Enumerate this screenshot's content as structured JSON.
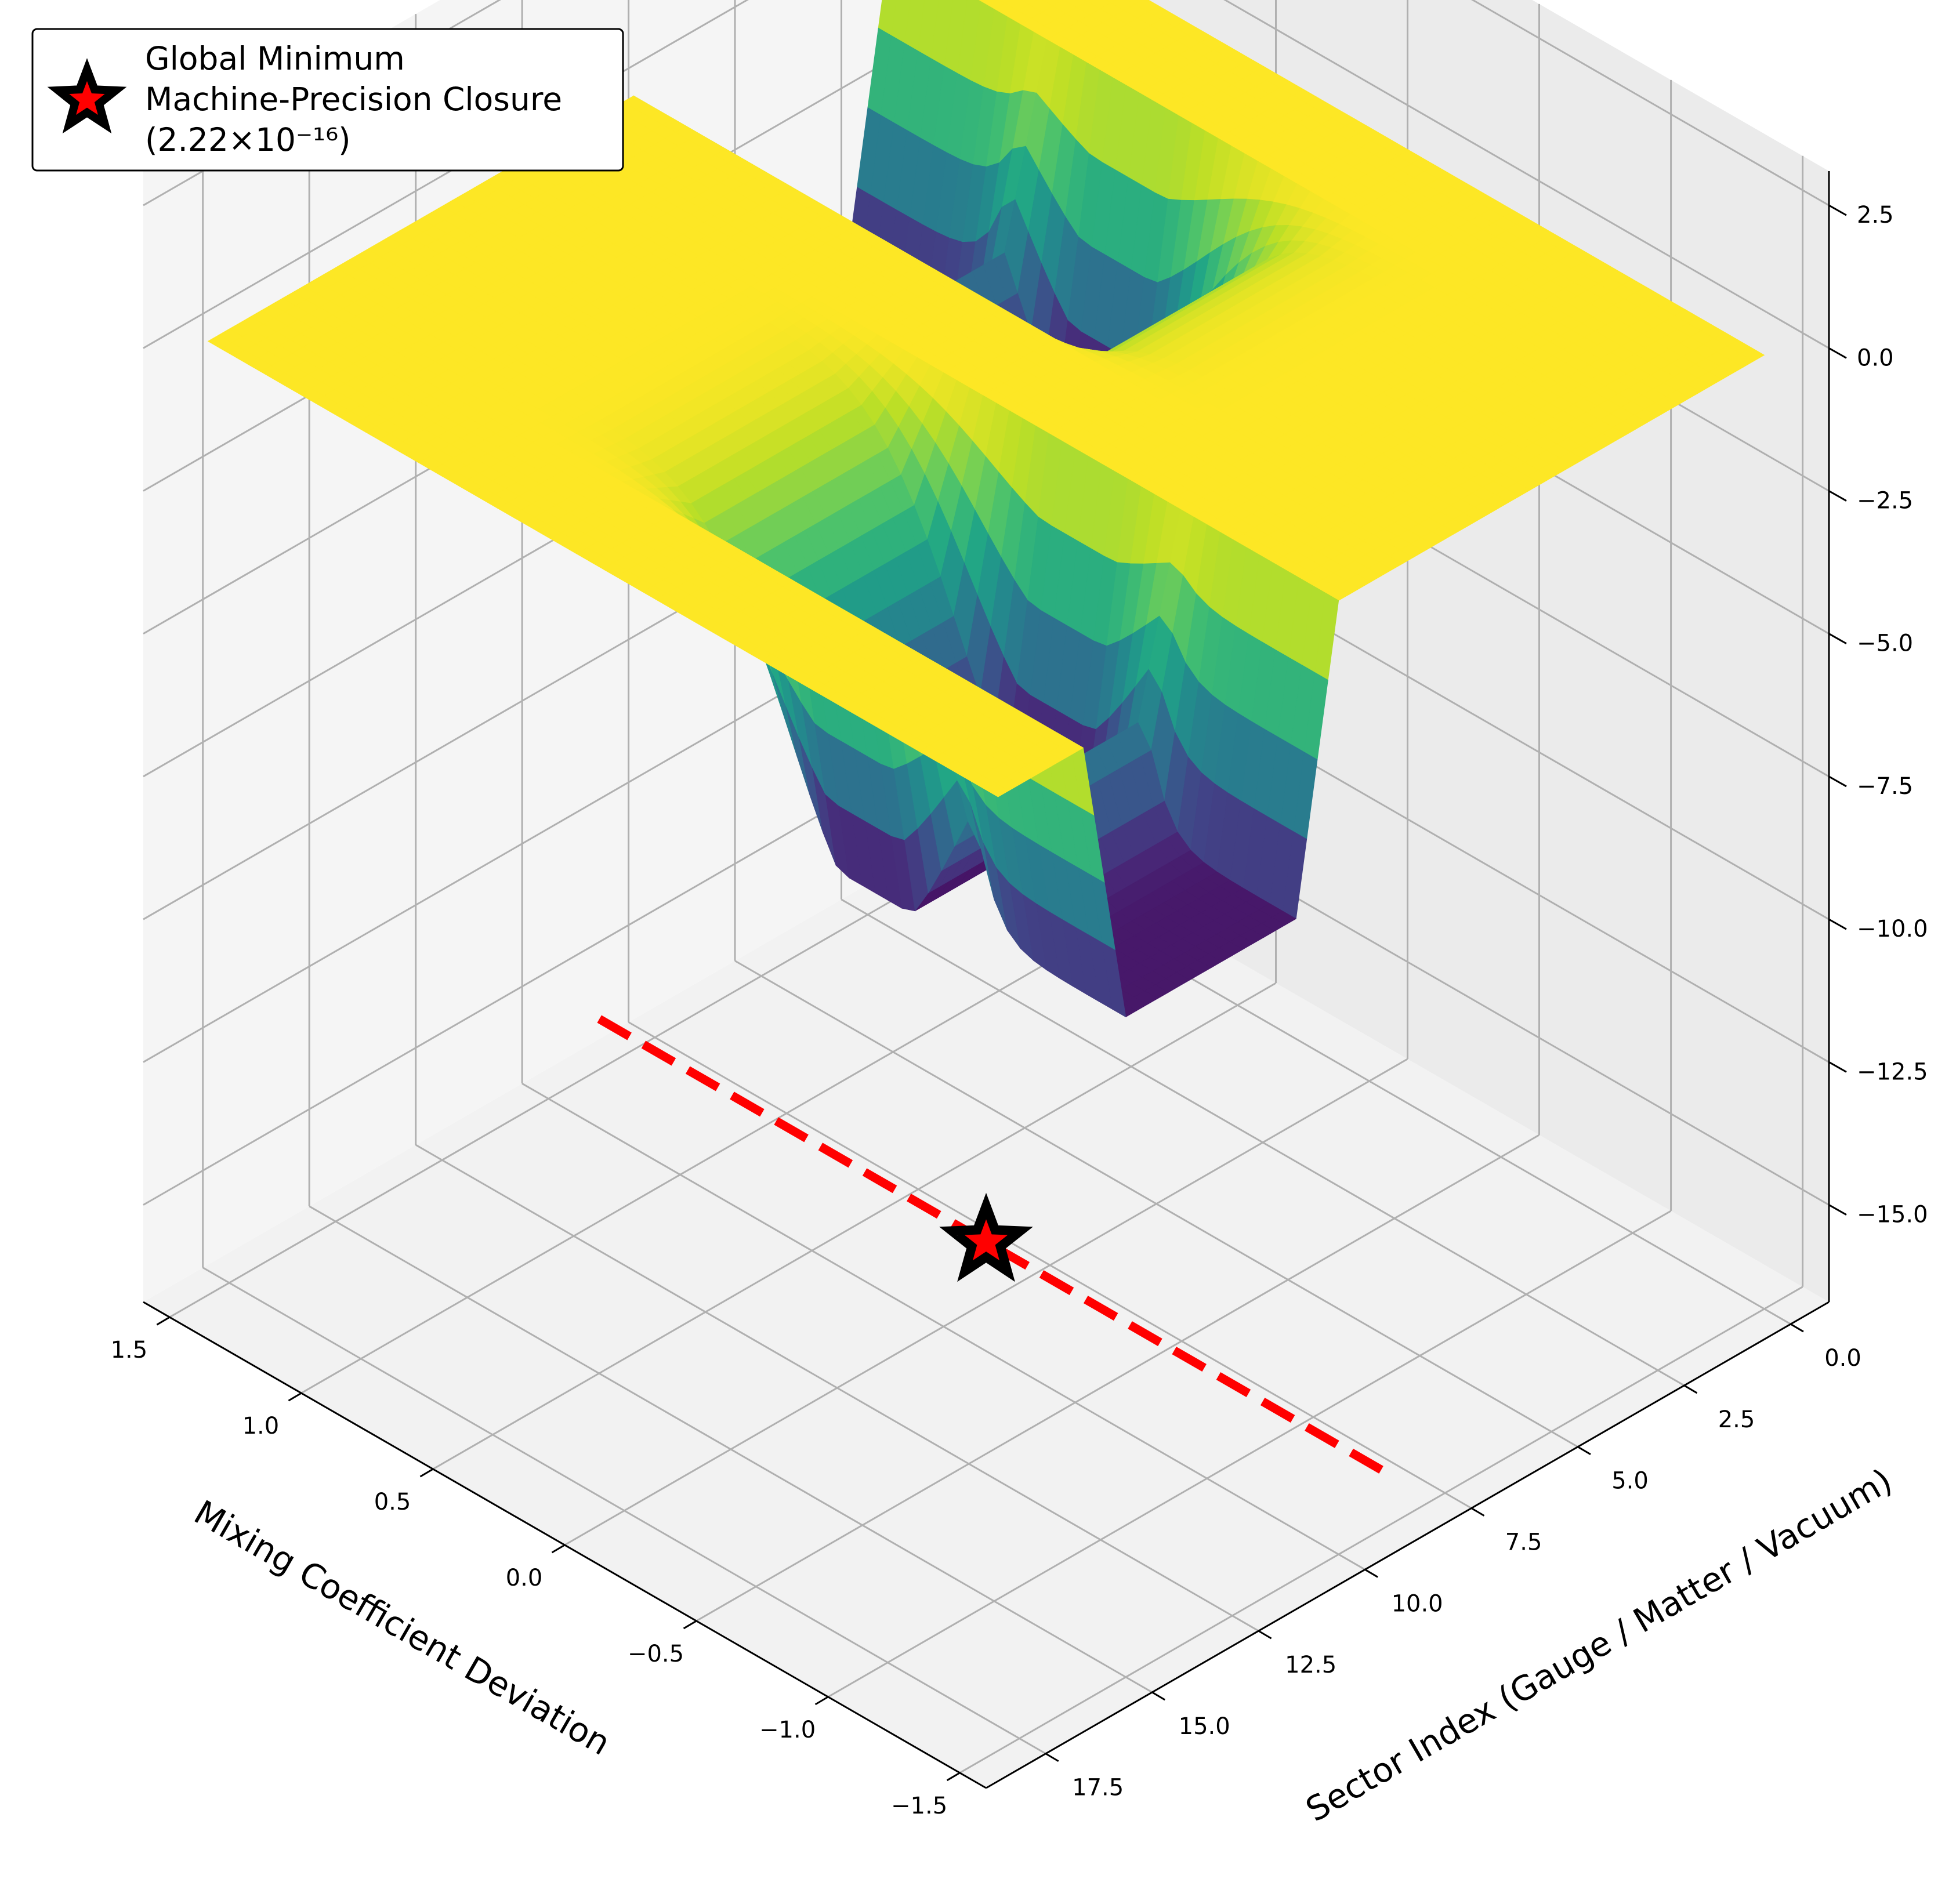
{
  "chart_data": {
    "type": "surface3d",
    "colormap": "viridis",
    "x_axis": {
      "label": "Mixing Coefficient Deviation",
      "ticks": [
        1.5,
        1.0,
        0.5,
        0.0,
        -0.5,
        -1.0,
        -1.5
      ],
      "tick_labels": [
        "1.5",
        "1.0",
        "0.5",
        "0.0",
        "−0.5",
        "−1.0",
        "−1.5"
      ],
      "range": [
        -1.6,
        1.6
      ]
    },
    "y_axis": {
      "label": "Sector Index (Gauge / Matter / Vacuum)",
      "ticks": [
        0,
        2.5,
        5,
        7.5,
        10,
        12.5,
        15,
        17.5
      ],
      "tick_labels": [
        "0.0",
        "2.5",
        "5.0",
        "7.5",
        "10.0",
        "12.5",
        "15.0",
        "17.5"
      ],
      "range": [
        -0.9,
        18.9
      ]
    },
    "z_axis": {
      "label": "",
      "ticks": [
        2.5,
        0.0,
        -2.5,
        -5.0,
        -7.5,
        -10.0,
        -12.5,
        -15.0
      ],
      "tick_labels": [
        "2.5",
        "0.0",
        "−2.5",
        "−5.0",
        "−7.5",
        "−10.0",
        "−12.5",
        "−15.0"
      ],
      "range": [
        -16.7,
        3.1
      ]
    },
    "surface": {
      "x_range": [
        -1.5,
        1.5
      ],
      "y_range": [
        0,
        18
      ],
      "baseline_z": 0,
      "min_z": -5.5,
      "troughs": [
        {
          "y_start": 2,
          "y_end": 8,
          "x_center": 0.55,
          "depth": 5.5
        },
        {
          "y_start": 10,
          "y_end": 16,
          "x_center": -0.55,
          "depth": 5.5
        }
      ]
    },
    "reference_line": {
      "style": "dashed",
      "color": "#ff0000",
      "x": [
        -1.5,
        1.5
      ],
      "y": [
        9,
        9
      ],
      "z": [
        -15.65,
        -15.65
      ]
    },
    "minimum_marker": {
      "x": 0.0,
      "y": 9,
      "z": -15.65,
      "marker": "star",
      "fill": "#ff0000",
      "edge": "#000000"
    },
    "legend": {
      "placement": "top-left",
      "entries": [
        "Global Minimum",
        "Machine-Precision Closure",
        "(2.22×10⁻¹⁶)"
      ]
    },
    "grid": true
  }
}
